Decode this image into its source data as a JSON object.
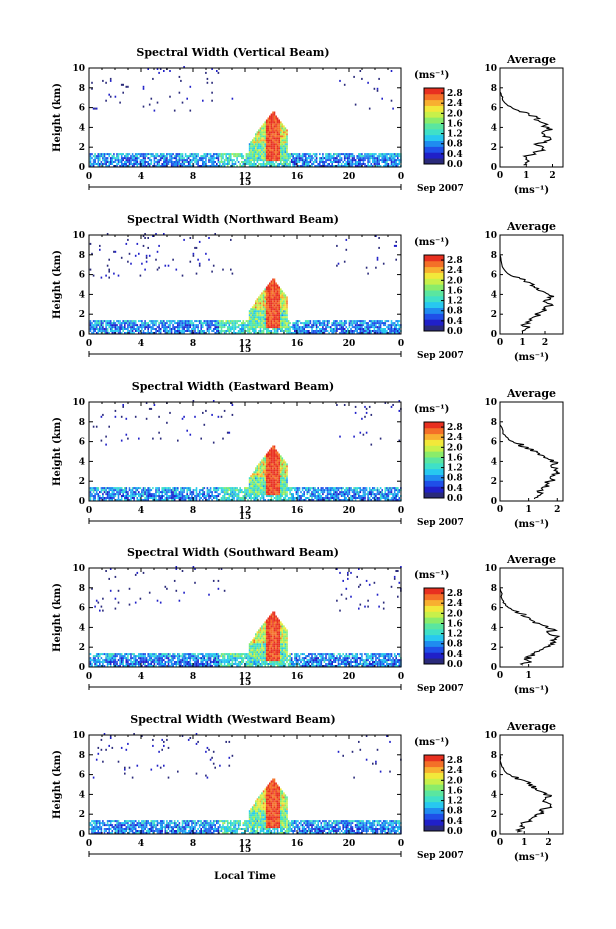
{
  "figure": {
    "xlabel": "Local Time",
    "date_label": "Sep 2007",
    "day_label": "15",
    "unit_label": "(ms⁻¹)",
    "average_title": "Average",
    "average_xlabel": "(ms⁻¹)",
    "ylabel": "Height (km)"
  },
  "colors": {
    "colormap": [
      "#2a2a7a",
      "#2020c8",
      "#1f4fe8",
      "#1f8cf0",
      "#27c8f0",
      "#3fe0c8",
      "#5ae6a0",
      "#8aec6a",
      "#c8f04a",
      "#f2e83a",
      "#f8b030",
      "#f47028",
      "#e83020"
    ]
  },
  "chart_data": [
    {
      "type": "heatmap",
      "title": "Spectral Width (Vertical Beam)",
      "x_ticks": [
        "0",
        "4",
        "8",
        "12",
        "16",
        "20",
        "0"
      ],
      "xlim": [
        0,
        24
      ],
      "y_ticks": [
        "0",
        "2",
        "4",
        "6",
        "8",
        "10"
      ],
      "ylim": [
        0,
        10
      ],
      "colorbar_ticks": [
        "0.0",
        "0.4",
        "0.8",
        "1.2",
        "1.6",
        "2.0",
        "2.4",
        "2.8"
      ],
      "colorbar_range": [
        0,
        3.0
      ],
      "average": {
        "x_ticks": [
          "0",
          "1",
          "2"
        ],
        "xlim": [
          0,
          2.4
        ],
        "y_ticks": [
          "0",
          "2",
          "4",
          "6",
          "8",
          "10"
        ],
        "profile": [
          [
            0.9,
            0.2
          ],
          [
            1.1,
            0.6
          ],
          [
            1.0,
            1.0
          ],
          [
            1.3,
            1.4
          ],
          [
            1.6,
            1.8
          ],
          [
            1.4,
            2.2
          ],
          [
            1.7,
            2.6
          ],
          [
            1.9,
            3.0
          ],
          [
            1.6,
            3.4
          ],
          [
            2.0,
            3.8
          ],
          [
            1.7,
            4.2
          ],
          [
            1.5,
            4.6
          ],
          [
            1.4,
            5.0
          ],
          [
            1.1,
            5.4
          ],
          [
            0.6,
            5.8
          ],
          [
            0.3,
            6.2
          ],
          [
            0.15,
            6.6
          ],
          [
            0.05,
            7.2
          ],
          [
            0.0,
            8.0
          ]
        ]
      }
    },
    {
      "type": "heatmap",
      "title": "Spectral Width (Northward Beam)",
      "x_ticks": [
        "0",
        "4",
        "8",
        "12",
        "16",
        "20",
        "0"
      ],
      "xlim": [
        0,
        24
      ],
      "y_ticks": [
        "0",
        "2",
        "4",
        "6",
        "8",
        "10"
      ],
      "ylim": [
        0,
        10
      ],
      "colorbar_ticks": [
        "0.0",
        "0.4",
        "0.8",
        "1.2",
        "1.6",
        "2.0",
        "2.4",
        "2.8"
      ],
      "colorbar_range": [
        0,
        3.0
      ],
      "average": {
        "x_ticks": [
          "0",
          "1",
          "2"
        ],
        "xlim": [
          0,
          2.8
        ],
        "y_ticks": [
          "0",
          "2",
          "4",
          "6",
          "8",
          "10"
        ],
        "profile": [
          [
            1.0,
            0.2
          ],
          [
            1.2,
            0.6
          ],
          [
            1.1,
            1.0
          ],
          [
            1.4,
            1.4
          ],
          [
            1.6,
            1.8
          ],
          [
            1.8,
            2.2
          ],
          [
            2.0,
            2.6
          ],
          [
            2.3,
            3.0
          ],
          [
            2.0,
            3.4
          ],
          [
            2.4,
            3.8
          ],
          [
            2.0,
            4.2
          ],
          [
            1.7,
            4.6
          ],
          [
            1.5,
            5.0
          ],
          [
            1.1,
            5.4
          ],
          [
            0.6,
            5.8
          ],
          [
            0.3,
            6.2
          ],
          [
            0.1,
            6.8
          ],
          [
            0.0,
            8.0
          ]
        ]
      }
    },
    {
      "type": "heatmap",
      "title": "Spectral Width (Eastward Beam)",
      "x_ticks": [
        "0",
        "4",
        "8",
        "12",
        "16",
        "20",
        "0"
      ],
      "xlim": [
        0,
        24
      ],
      "y_ticks": [
        "0",
        "2",
        "4",
        "6",
        "8",
        "10"
      ],
      "ylim": [
        0,
        10
      ],
      "colorbar_ticks": [
        "0.0",
        "0.4",
        "0.8",
        "1.2",
        "1.6",
        "2.0",
        "2.4",
        "2.8"
      ],
      "colorbar_range": [
        0,
        3.0
      ],
      "average": {
        "x_ticks": [
          "0",
          "1",
          "2"
        ],
        "xlim": [
          0,
          2.2
        ],
        "y_ticks": [
          "0",
          "2",
          "4",
          "6",
          "8",
          "10"
        ],
        "profile": [
          [
            1.2,
            0.2
          ],
          [
            1.4,
            0.6
          ],
          [
            1.3,
            1.0
          ],
          [
            1.5,
            1.4
          ],
          [
            1.7,
            1.8
          ],
          [
            1.8,
            2.2
          ],
          [
            1.9,
            2.6
          ],
          [
            2.0,
            3.0
          ],
          [
            1.8,
            3.4
          ],
          [
            2.0,
            3.8
          ],
          [
            1.7,
            4.2
          ],
          [
            1.5,
            4.6
          ],
          [
            1.3,
            5.0
          ],
          [
            1.0,
            5.4
          ],
          [
            0.6,
            5.8
          ],
          [
            0.3,
            6.2
          ],
          [
            0.1,
            6.8
          ],
          [
            0.0,
            8.0
          ]
        ]
      }
    },
    {
      "type": "heatmap",
      "title": "Spectral Width (Southward Beam)",
      "x_ticks": [
        "0",
        "4",
        "8",
        "12",
        "16",
        "20",
        "0"
      ],
      "xlim": [
        0,
        24
      ],
      "y_ticks": [
        "0",
        "2",
        "4",
        "6",
        "8",
        "10"
      ],
      "ylim": [
        0,
        10
      ],
      "colorbar_ticks": [
        "0.0",
        "0.4",
        "0.8",
        "1.2",
        "1.6",
        "2.0",
        "2.4",
        "2.8"
      ],
      "colorbar_range": [
        0,
        3.0
      ],
      "average": {
        "x_ticks": [
          "0",
          "1"
        ],
        "xlim": [
          0,
          2.2
        ],
        "y_ticks": [
          "0",
          "2",
          "4",
          "6",
          "8",
          "10"
        ],
        "profile": [
          [
            0.8,
            0.2
          ],
          [
            1.0,
            0.6
          ],
          [
            0.9,
            1.0
          ],
          [
            1.2,
            1.4
          ],
          [
            1.5,
            1.8
          ],
          [
            1.7,
            2.2
          ],
          [
            1.9,
            2.6
          ],
          [
            2.0,
            3.0
          ],
          [
            1.7,
            3.4
          ],
          [
            1.9,
            3.8
          ],
          [
            1.5,
            4.2
          ],
          [
            1.2,
            4.6
          ],
          [
            1.0,
            5.0
          ],
          [
            0.7,
            5.4
          ],
          [
            0.4,
            5.8
          ],
          [
            0.2,
            6.2
          ],
          [
            0.08,
            6.8
          ],
          [
            0.0,
            8.0
          ]
        ]
      }
    },
    {
      "type": "heatmap",
      "title": "Spectral Width (Westward Beam)",
      "x_ticks": [
        "0",
        "4",
        "8",
        "12",
        "16",
        "20",
        "0"
      ],
      "xlim": [
        0,
        24
      ],
      "y_ticks": [
        "0",
        "2",
        "4",
        "6",
        "8",
        "10"
      ],
      "ylim": [
        0,
        10
      ],
      "colorbar_ticks": [
        "0.0",
        "0.4",
        "0.8",
        "1.2",
        "1.6",
        "2.0",
        "2.4",
        "2.8"
      ],
      "colorbar_range": [
        0,
        3.0
      ],
      "average": {
        "x_ticks": [
          "0",
          "1",
          "2"
        ],
        "xlim": [
          0,
          2.6
        ],
        "y_ticks": [
          "0",
          "2",
          "4",
          "6",
          "8",
          "10"
        ],
        "profile": [
          [
            0.7,
            0.2
          ],
          [
            1.0,
            0.6
          ],
          [
            0.9,
            1.0
          ],
          [
            1.2,
            1.4
          ],
          [
            1.5,
            1.8
          ],
          [
            1.7,
            2.2
          ],
          [
            1.9,
            2.6
          ],
          [
            2.1,
            3.0
          ],
          [
            1.8,
            3.4
          ],
          [
            2.1,
            3.8
          ],
          [
            1.8,
            4.2
          ],
          [
            1.5,
            4.6
          ],
          [
            1.3,
            5.0
          ],
          [
            1.0,
            5.4
          ],
          [
            0.5,
            5.8
          ],
          [
            0.25,
            6.2
          ],
          [
            0.08,
            6.8
          ],
          [
            0.0,
            8.0
          ]
        ]
      }
    }
  ]
}
